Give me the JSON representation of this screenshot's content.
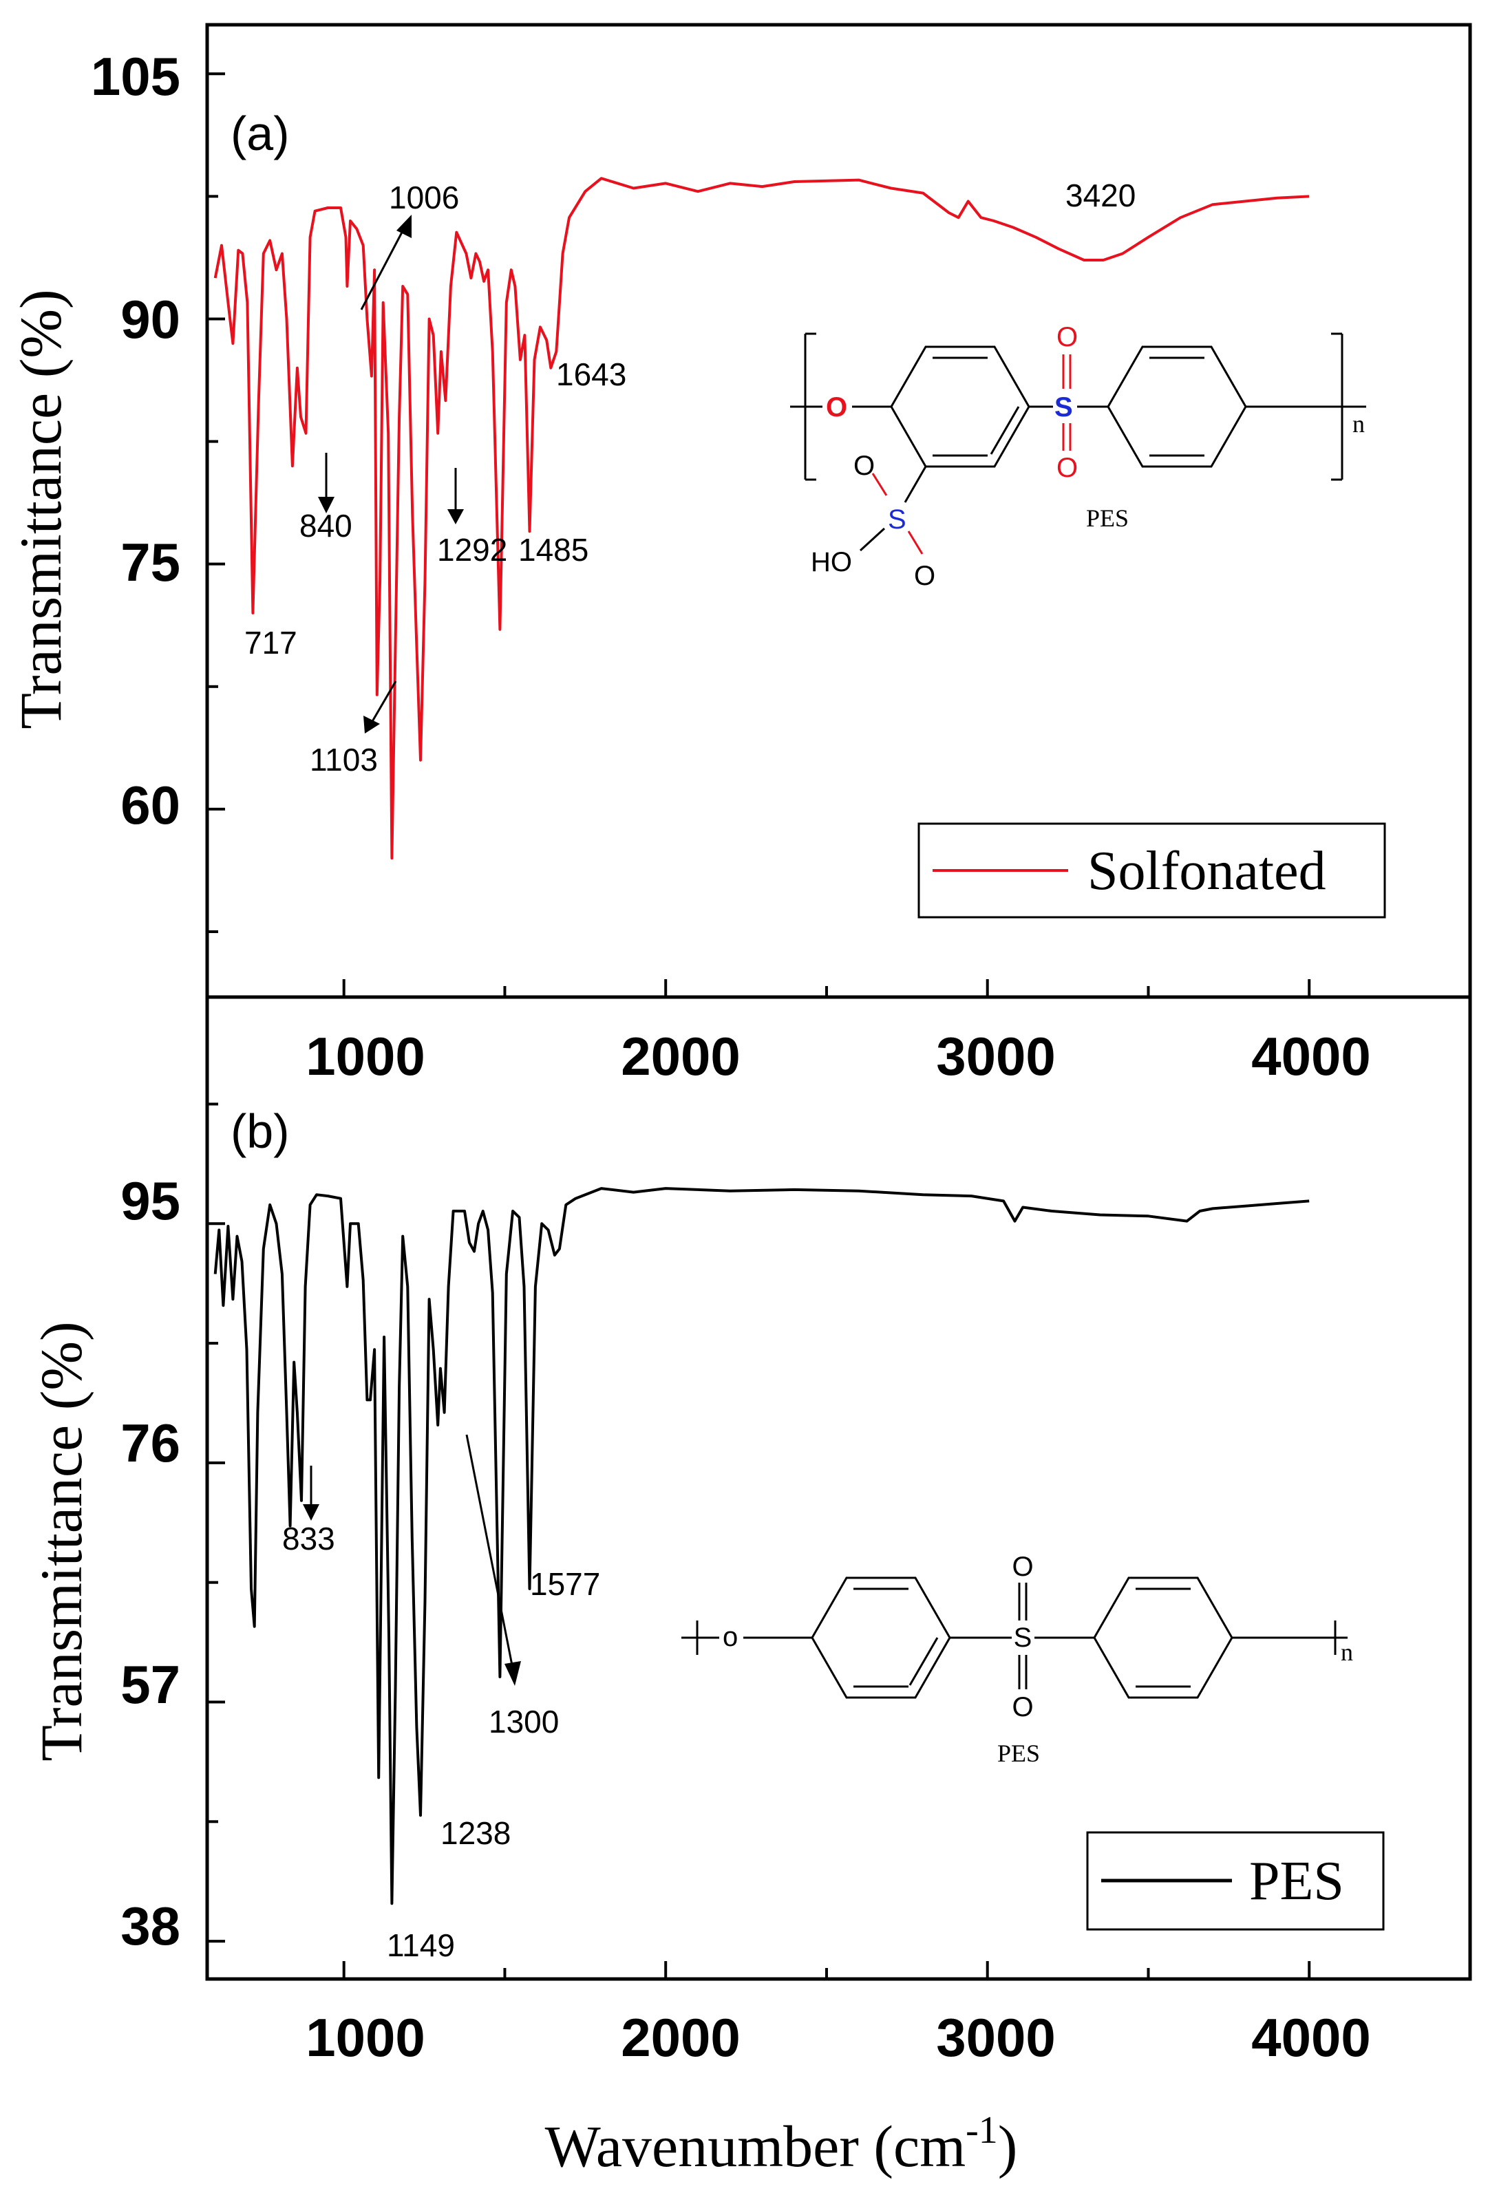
{
  "chart_data": [
    {
      "type": "line",
      "panel": "(a)",
      "ylabel": "Transmittance (%)",
      "xlabel": "",
      "xlim": [
        575,
        4500
      ],
      "ylim": [
        48.5,
        108
      ],
      "yticks": [
        60,
        75,
        90,
        105
      ],
      "xticks": [
        1000,
        2000,
        3000,
        4000
      ],
      "series": [
        {
          "name": "Solfonated",
          "color": "#e8121f",
          "points": [
            [
              600,
              92.5
            ],
            [
              620,
              94.5
            ],
            [
              640,
              91
            ],
            [
              655,
              88.5
            ],
            [
              672,
              94.2
            ],
            [
              685,
              94
            ],
            [
              700,
              91
            ],
            [
              717,
              72
            ],
            [
              735,
              85
            ],
            [
              750,
              94
            ],
            [
              770,
              94.8
            ],
            [
              790,
              93
            ],
            [
              808,
              94
            ],
            [
              822,
              90
            ],
            [
              840,
              81
            ],
            [
              855,
              87
            ],
            [
              866,
              84
            ],
            [
              882,
              83
            ],
            [
              895,
              95
            ],
            [
              910,
              96.6
            ],
            [
              950,
              96.8
            ],
            [
              990,
              96.8
            ],
            [
              1006,
              95
            ],
            [
              1010,
              92
            ],
            [
              1020,
              96
            ],
            [
              1040,
              95.5
            ],
            [
              1060,
              94.5
            ],
            [
              1072,
              90
            ],
            [
              1086,
              86.5
            ],
            [
              1095,
              93
            ],
            [
              1103,
              67
            ],
            [
              1112,
              74
            ],
            [
              1122,
              91
            ],
            [
              1138,
              83
            ],
            [
              1149,
              57
            ],
            [
              1160,
              70
            ],
            [
              1172,
              84
            ],
            [
              1183,
              92
            ],
            [
              1198,
              91.5
            ],
            [
              1213,
              78
            ],
            [
              1226,
              70
            ],
            [
              1238,
              63
            ],
            [
              1252,
              74
            ],
            [
              1265,
              90
            ],
            [
              1278,
              89
            ],
            [
              1292,
              83
            ],
            [
              1302,
              88
            ],
            [
              1316,
              85
            ],
            [
              1332,
              92
            ],
            [
              1350,
              95.3
            ],
            [
              1380,
              94
            ],
            [
              1395,
              92.5
            ],
            [
              1410,
              94
            ],
            [
              1422,
              93.5
            ],
            [
              1435,
              92.3
            ],
            [
              1448,
              93
            ],
            [
              1462,
              88
            ],
            [
              1485,
              71
            ],
            [
              1505,
              91
            ],
            [
              1520,
              93
            ],
            [
              1532,
              92
            ],
            [
              1548,
              87.5
            ],
            [
              1562,
              89
            ],
            [
              1577,
              77
            ],
            [
              1592,
              87.5
            ],
            [
              1610,
              89.5
            ],
            [
              1630,
              88.7
            ],
            [
              1643,
              87
            ],
            [
              1660,
              88
            ],
            [
              1680,
              94
            ],
            [
              1700,
              96.2
            ],
            [
              1750,
              97.8
            ],
            [
              1800,
              98.6
            ],
            [
              1900,
              98
            ],
            [
              2000,
              98.3
            ],
            [
              2100,
              97.8
            ],
            [
              2200,
              98.3
            ],
            [
              2300,
              98.1
            ],
            [
              2400,
              98.4
            ],
            [
              2600,
              98.5
            ],
            [
              2700,
              98
            ],
            [
              2800,
              97.7
            ],
            [
              2880,
              96.5
            ],
            [
              2910,
              96.2
            ],
            [
              2940,
              97.2
            ],
            [
              2980,
              96.2
            ],
            [
              3020,
              96
            ],
            [
              3080,
              95.6
            ],
            [
              3150,
              95
            ],
            [
              3220,
              94.3
            ],
            [
              3300,
              93.6
            ],
            [
              3360,
              93.6
            ],
            [
              3420,
              94
            ],
            [
              3500,
              95
            ],
            [
              3600,
              96.2
            ],
            [
              3700,
              97
            ],
            [
              3800,
              97.2
            ],
            [
              3900,
              97.4
            ],
            [
              4000,
              97.5
            ]
          ]
        }
      ],
      "legend": {
        "label": "Solfonated",
        "position": "bottom-right"
      },
      "annotations": [
        "717",
        "840",
        "1006",
        "1103",
        "1292",
        "1485",
        "1643",
        "3420"
      ]
    },
    {
      "type": "line",
      "panel": "(b)",
      "ylabel": "Transmittance (%)",
      "xlabel": "Wavenumber (cm-1)",
      "xlim": [
        575,
        4500
      ],
      "ylim": [
        35,
        113
      ],
      "yticks": [
        38,
        57,
        76,
        95
      ],
      "xticks": [
        1000,
        2000,
        3000,
        4000
      ],
      "series": [
        {
          "name": "PES",
          "color": "#000000",
          "points": [
            [
              600,
              91
            ],
            [
              612,
              94.5
            ],
            [
              625,
              88.5
            ],
            [
              640,
              94.8
            ],
            [
              655,
              89
            ],
            [
              668,
              94
            ],
            [
              683,
              92
            ],
            [
              698,
              85
            ],
            [
              712,
              66
            ],
            [
              722,
              63
            ],
            [
              732,
              80
            ],
            [
              750,
              93
            ],
            [
              770,
              96.5
            ],
            [
              790,
              95
            ],
            [
              808,
              91
            ],
            [
              822,
              80
            ],
            [
              833,
              71
            ],
            [
              845,
              84
            ],
            [
              855,
              80
            ],
            [
              868,
              73
            ],
            [
              880,
              90
            ],
            [
              895,
              96.5
            ],
            [
              915,
              97.3
            ],
            [
              950,
              97.2
            ],
            [
              990,
              97
            ],
            [
              1000,
              93.5
            ],
            [
              1010,
              90
            ],
            [
              1020,
              95
            ],
            [
              1045,
              95
            ],
            [
              1060,
              90.5
            ],
            [
              1072,
              81
            ],
            [
              1082,
              81
            ],
            [
              1095,
              85
            ],
            [
              1108,
              51
            ],
            [
              1125,
              86
            ],
            [
              1140,
              62
            ],
            [
              1149,
              41
            ],
            [
              1160,
              58
            ],
            [
              1172,
              82
            ],
            [
              1183,
              94
            ],
            [
              1198,
              90
            ],
            [
              1212,
              70
            ],
            [
              1226,
              55
            ],
            [
              1238,
              48
            ],
            [
              1252,
              65
            ],
            [
              1265,
              89
            ],
            [
              1278,
              85
            ],
            [
              1292,
              79
            ],
            [
              1300,
              83.5
            ],
            [
              1312,
              80
            ],
            [
              1325,
              90
            ],
            [
              1340,
              96
            ],
            [
              1375,
              96
            ],
            [
              1390,
              93.5
            ],
            [
              1405,
              92.8
            ],
            [
              1418,
              95
            ],
            [
              1432,
              96
            ],
            [
              1448,
              94.5
            ],
            [
              1462,
              89.5
            ],
            [
              1485,
              59
            ],
            [
              1505,
              91
            ],
            [
              1525,
              96
            ],
            [
              1545,
              95.5
            ],
            [
              1560,
              90
            ],
            [
              1577,
              66
            ],
            [
              1595,
              90
            ],
            [
              1615,
              95
            ],
            [
              1635,
              94.5
            ],
            [
              1655,
              92.5
            ],
            [
              1670,
              93
            ],
            [
              1690,
              96.5
            ],
            [
              1720,
              97
            ],
            [
              1800,
              97.8
            ],
            [
              1900,
              97.5
            ],
            [
              2000,
              97.8
            ],
            [
              2200,
              97.6
            ],
            [
              2400,
              97.7
            ],
            [
              2600,
              97.6
            ],
            [
              2800,
              97.3
            ],
            [
              2950,
              97.2
            ],
            [
              3050,
              96.8
            ],
            [
              3085,
              95.2
            ],
            [
              3110,
              96.3
            ],
            [
              3200,
              96
            ],
            [
              3350,
              95.7
            ],
            [
              3500,
              95.6
            ],
            [
              3620,
              95.2
            ],
            [
              3660,
              96
            ],
            [
              3700,
              96.2
            ],
            [
              3800,
              96.4
            ],
            [
              3900,
              96.6
            ],
            [
              4000,
              96.8
            ]
          ]
        }
      ],
      "legend": {
        "label": "PES",
        "position": "bottom-right"
      },
      "annotations": [
        "833",
        "1149",
        "1238",
        "1300",
        "1577"
      ]
    }
  ],
  "panels": {
    "a": {
      "label": "(a)",
      "ylabel": "Transmittance (%)",
      "yticks": [
        "60",
        "75",
        "90",
        "105"
      ],
      "xticks": [
        "1000",
        "2000",
        "3000",
        "4000"
      ],
      "legend": "Solfonated",
      "annotations": {
        "a717": "717",
        "a840": "840",
        "a1006": "1006",
        "a1103": "1103",
        "a1292": "1292",
        "a1485": "1485",
        "a1643": "1643",
        "a3420": "3420"
      },
      "structure": {
        "o": "O",
        "s": "S",
        "o_top": "O",
        "o_bottom": "O",
        "s2": "S",
        "o2a": "O",
        "o2b": "O",
        "ho": "HO",
        "n": "n",
        "caption": "PES"
      }
    },
    "b": {
      "label": "(b)",
      "ylabel": "Transmittance (%)",
      "yticks": [
        "38",
        "57",
        "76",
        "95"
      ],
      "xticks": [
        "1000",
        "2000",
        "3000",
        "4000"
      ],
      "legend": "PES",
      "annotations": {
        "a833": "833",
        "a1149": "1149",
        "a1238": "1238",
        "a1300": "1300",
        "a1577": "1577"
      },
      "structure": {
        "o": "o",
        "s": "S",
        "o_top": "O",
        "o_bottom": "O",
        "n": "n",
        "caption": "PES"
      }
    },
    "xlabel_main": "Wavenumber (cm",
    "xlabel_sup": "-1",
    "xlabel_end": ")"
  },
  "colors": {
    "solfonated": "#e8121f",
    "pes": "#000000",
    "axis": "#000000",
    "sulfur_a": "#1a2bd6",
    "oxygen_a": "#e8121f"
  }
}
